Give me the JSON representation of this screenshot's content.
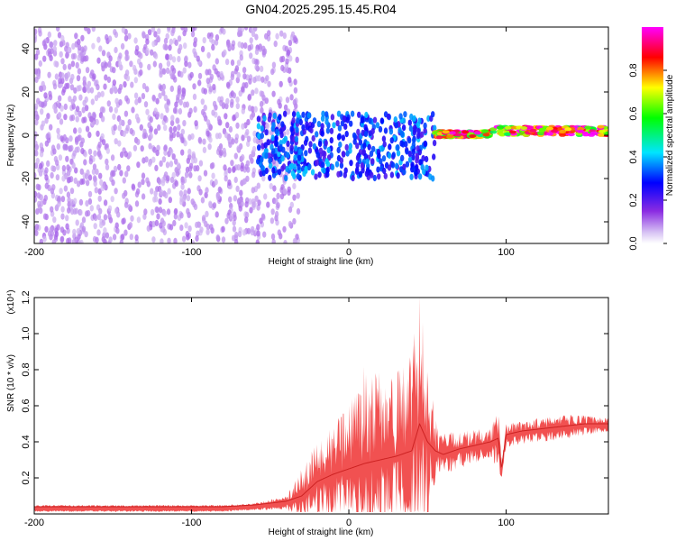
{
  "title": "GN04.2025.295.15.45.R04",
  "chart_data": [
    {
      "type": "heatmap",
      "xlabel": "Height of straight line (km)",
      "ylabel": "Frequency (Hz)",
      "xlim": [
        -200,
        165
      ],
      "ylim": [
        -50,
        50
      ],
      "xticks": [
        -200,
        -100,
        0,
        100
      ],
      "xtick_labels": [
        "-200",
        "-100",
        "0",
        "100"
      ],
      "yticks": [
        -40,
        -20,
        0,
        20,
        40
      ],
      "ytick_labels": [
        "-40",
        "-20",
        "0",
        "20",
        "40"
      ],
      "colorbar": {
        "label": "Normalized spectral amplitude",
        "range": [
          0,
          1
        ],
        "ticks": [
          0.0,
          0.2,
          0.4,
          0.6,
          0.8
        ],
        "tick_labels": [
          "0.0",
          "0.2",
          "0.4",
          "0.6",
          "0.8"
        ],
        "colors": [
          "#ffffff",
          "#8a2be2",
          "#0000ff",
          "#00ffff",
          "#00ff00",
          "#ffff00",
          "#ff0000",
          "#ff00ff"
        ]
      },
      "regions": [
        {
          "x_range": [
            -200,
            -32
          ],
          "freq_range": [
            -50,
            50
          ],
          "level": 0.1,
          "description": "broadband low amplitude noise"
        },
        {
          "x_range": [
            -60,
            55
          ],
          "freq_range": [
            -20,
            10
          ],
          "level": 0.35,
          "description": "mid amplitude band"
        },
        {
          "x_range": [
            55,
            90
          ],
          "freq_range": [
            -1,
            2
          ],
          "level": 0.9,
          "description": "narrow high amplitude line"
        },
        {
          "x_range": [
            90,
            165
          ],
          "freq_range": [
            0,
            4
          ],
          "level": 0.95,
          "description": "narrow high amplitude line"
        }
      ]
    },
    {
      "type": "line",
      "xlabel": "Height of straight line (km)",
      "ylabel": "SNR (10 * v/v)",
      "y_scale_label": "(x10⁴)",
      "xlim": [
        -200,
        165
      ],
      "ylim": [
        0,
        1.2
      ],
      "xticks": [
        -200,
        -100,
        0,
        100
      ],
      "xtick_labels": [
        "-200",
        "-100",
        "0",
        "100"
      ],
      "yticks": [
        0.2,
        0.4,
        0.6,
        0.8,
        1.0,
        1.2
      ],
      "ytick_labels": [
        "0.2",
        "0.4",
        "0.6",
        "0.8",
        "1.0",
        "1.2"
      ],
      "color": "#ee3333",
      "series": [
        {
          "name": "SNR",
          "x": [
            -200,
            -160,
            -120,
            -80,
            -60,
            -50,
            -40,
            -30,
            -20,
            -10,
            0,
            10,
            20,
            30,
            40,
            45,
            50,
            55,
            60,
            70,
            80,
            90,
            95,
            97,
            100,
            110,
            120,
            130,
            140,
            150,
            165
          ],
          "y": [
            0.04,
            0.04,
            0.04,
            0.04,
            0.05,
            0.06,
            0.07,
            0.1,
            0.18,
            0.22,
            0.25,
            0.28,
            0.3,
            0.32,
            0.35,
            0.5,
            0.4,
            0.35,
            0.33,
            0.36,
            0.38,
            0.4,
            0.42,
            0.25,
            0.44,
            0.46,
            0.47,
            0.48,
            0.49,
            0.5,
            0.5
          ],
          "y_max": [
            0.05,
            0.05,
            0.05,
            0.05,
            0.06,
            0.08,
            0.1,
            0.25,
            0.4,
            0.5,
            0.6,
            0.85,
            0.78,
            0.8,
            0.9,
            1.22,
            0.85,
            0.55,
            0.45,
            0.46,
            0.47,
            0.48,
            0.6,
            0.3,
            0.5,
            0.52,
            0.53,
            0.54,
            0.55,
            0.55,
            0.53
          ]
        }
      ]
    }
  ]
}
